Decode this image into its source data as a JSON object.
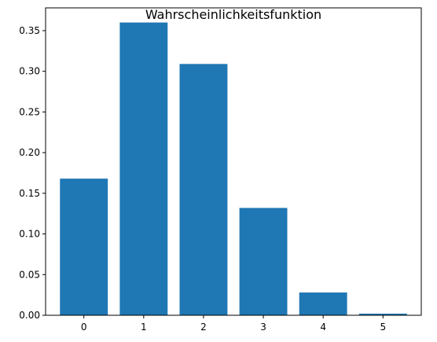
{
  "chart_data": {
    "type": "bar",
    "title": "Wahrscheinlichkeitsfunktion",
    "xlabel": "",
    "ylabel": "",
    "categories": [
      "0",
      "1",
      "2",
      "3",
      "4",
      "5"
    ],
    "values": [
      0.168,
      0.36,
      0.309,
      0.132,
      0.028,
      0.002
    ],
    "ylim": [
      0,
      0.378
    ],
    "yticks": [
      0.0,
      0.05,
      0.1,
      0.15,
      0.2,
      0.25,
      0.3,
      0.35
    ],
    "ytick_labels": [
      "0.00",
      "0.05",
      "0.10",
      "0.15",
      "0.20",
      "0.25",
      "0.30",
      "0.35"
    ],
    "bar_color": "#1f77b4",
    "grid": false
  }
}
